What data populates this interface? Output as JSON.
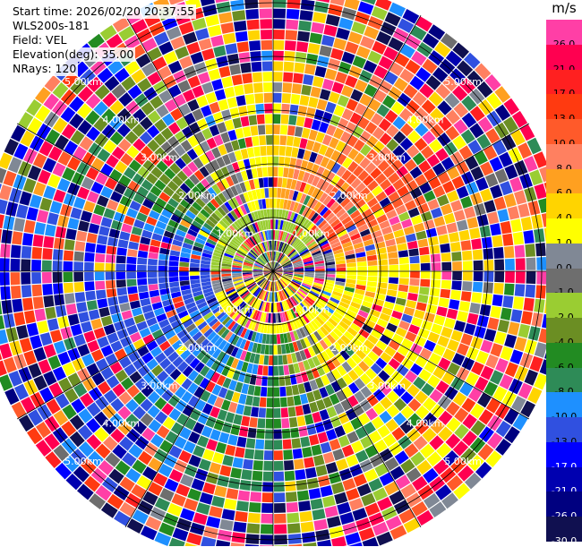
{
  "header": {
    "start_time": "Start time: 2026/02/20 20:37:55",
    "instrument": "WLS200s-181",
    "field": "Field: VEL",
    "elevation": "Elevation(deg): 35.00",
    "nrays": "NRays: 120"
  },
  "colorbar": {
    "unit": "m/s",
    "bins": [
      {
        "label": "26.0",
        "color": "#ff3fa6"
      },
      {
        "label": "21.0",
        "color": "#ff0050"
      },
      {
        "label": "17.0",
        "color": "#ff2020"
      },
      {
        "label": "13.0",
        "color": "#ff3a10"
      },
      {
        "label": "10.0",
        "color": "#ff5a2a"
      },
      {
        "label": "8.0",
        "color": "#ff8060"
      },
      {
        "label": "6.0",
        "color": "#ffa020"
      },
      {
        "label": "4.0",
        "color": "#ffd400"
      },
      {
        "label": "1.0",
        "color": "#ffff00"
      },
      {
        "label": "0.0",
        "color": "#808895"
      },
      {
        "label": "-1.0",
        "color": "#6e6e6e"
      },
      {
        "label": "-2.0",
        "color": "#9acd32"
      },
      {
        "label": "-4.0",
        "color": "#6b8e23"
      },
      {
        "label": "-6.0",
        "color": "#228b22"
      },
      {
        "label": "-8.0",
        "color": "#2e8b57"
      },
      {
        "label": "-10.0",
        "color": "#1e90ff"
      },
      {
        "label": "-13.0",
        "color": "#3050e0"
      },
      {
        "label": "-17.0",
        "color": "#0000ff"
      },
      {
        "label": "-21.0",
        "color": "#0000b0"
      },
      {
        "label": "-26.0",
        "color": "#000080"
      },
      {
        "label": "-30.0",
        "color": "#101050"
      }
    ]
  },
  "chart_data": {
    "type": "heatmap",
    "projection": "polar-ppi",
    "field": "VEL",
    "nrays": 120,
    "range_rings_km": [
      1,
      2,
      3,
      4,
      5
    ],
    "range_labels": [
      "1.00km",
      "2.00km",
      "3.00km",
      "4.00km",
      "5.00km"
    ],
    "spoke_step_deg": 30,
    "max_range_km": 5.5,
    "gates_per_ray": 28,
    "dominant_velocity_by_sector": [
      {
        "azimuth_deg": 0,
        "velocity": 5
      },
      {
        "azimuth_deg": 60,
        "velocity": 12
      },
      {
        "azimuth_deg": 90,
        "velocity": 3
      },
      {
        "azimuth_deg": 135,
        "velocity": 4
      },
      {
        "azimuth_deg": 180,
        "velocity": -6
      },
      {
        "azimuth_deg": 225,
        "velocity": -10
      },
      {
        "azimuth_deg": 270,
        "velocity": -13
      },
      {
        "azimuth_deg": 315,
        "velocity": -3
      }
    ],
    "noise_beyond_km": 2.4
  }
}
